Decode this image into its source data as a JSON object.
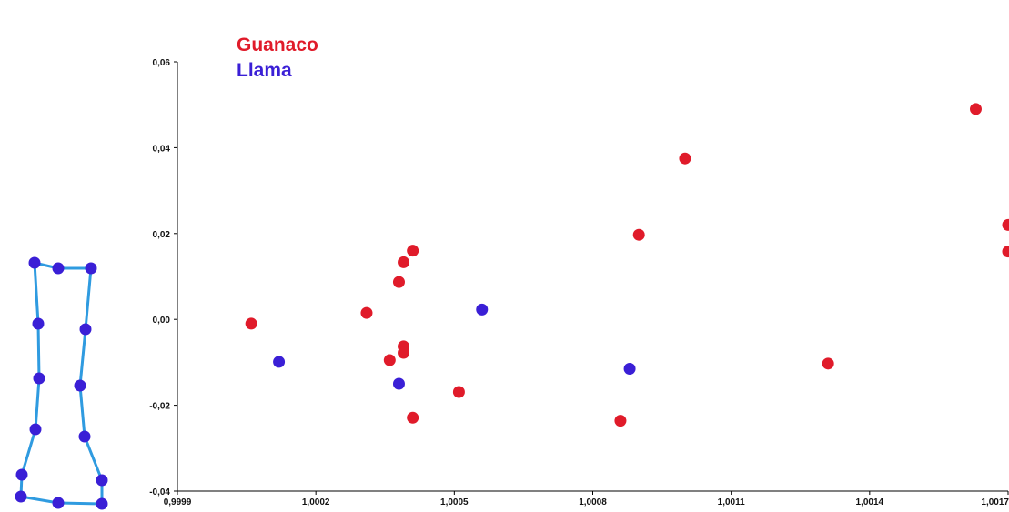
{
  "colors": {
    "guanaco": "#e01b2a",
    "llama": "#3a1fd6",
    "outline": "#2f9be0",
    "axis": "#000000"
  },
  "chart_data": {
    "type": "scatter",
    "xlim": [
      0.9999,
      1.0017
    ],
    "ylim": [
      -0.04,
      0.06
    ],
    "x_ticks": [
      0.9999,
      1.0002,
      1.0005,
      1.0008,
      1.0011,
      1.0014,
      1.0017
    ],
    "x_tick_labels": [
      "0,9999",
      "1,0002",
      "1,0005",
      "1,0008",
      "1,0011",
      "1,0014",
      "1,0017"
    ],
    "y_ticks": [
      0.06,
      0.04,
      0.02,
      0.0,
      -0.02,
      -0.04
    ],
    "y_tick_labels": [
      "0,06",
      "0,04",
      "0,02",
      "0,00",
      "-0,02",
      "-0,04"
    ],
    "grid": false,
    "legend_position": "top-left",
    "series": [
      {
        "name": "Guanaco",
        "color": "#e01b2a",
        "points": [
          [
            1.00006,
            -0.001
          ],
          [
            1.00031,
            0.0015
          ],
          [
            1.00036,
            -0.0095
          ],
          [
            1.00038,
            0.0087
          ],
          [
            1.00039,
            0.0133
          ],
          [
            1.00041,
            0.016
          ],
          [
            1.00039,
            -0.0063
          ],
          [
            1.00039,
            -0.0078
          ],
          [
            1.00041,
            -0.0229
          ],
          [
            1.00051,
            -0.0169
          ],
          [
            1.00086,
            -0.0236
          ],
          [
            1.0009,
            0.0197
          ],
          [
            1.001,
            0.0375
          ],
          [
            1.00131,
            -0.0103
          ],
          [
            1.00163,
            0.049
          ],
          [
            1.0017,
            0.022
          ],
          [
            1.0017,
            0.0158
          ]
        ]
      },
      {
        "name": "Llama",
        "color": "#3a1fd6",
        "points": [
          [
            1.00012,
            -0.0099
          ],
          [
            1.00038,
            -0.015
          ],
          [
            1.00056,
            0.0023
          ],
          [
            1.00088,
            -0.0115
          ]
        ]
      }
    ]
  },
  "outline_shape": {
    "landmarks": [
      [
        38,
        289
      ],
      [
        64,
        295
      ],
      [
        100,
        295
      ],
      [
        94,
        362
      ],
      [
        88,
        424
      ],
      [
        93,
        480
      ],
      [
        112,
        528
      ],
      [
        112,
        554
      ],
      [
        64,
        553
      ],
      [
        23,
        546
      ],
      [
        24,
        522
      ],
      [
        39,
        472
      ],
      [
        43,
        416
      ],
      [
        42,
        356
      ]
    ]
  }
}
